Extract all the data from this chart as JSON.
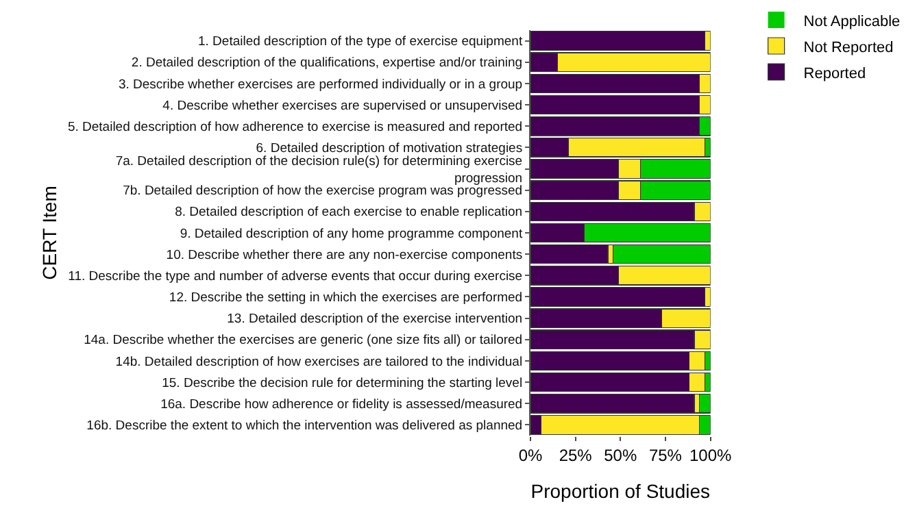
{
  "chart_data": {
    "type": "bar",
    "orientation": "horizontal",
    "stacked": true,
    "xlabel": "Proportion of Studies",
    "ylabel": "CERT Item",
    "categories": [
      "1. Detailed description of the type of exercise equipment",
      "2. Detailed description of the qualifications, expertise and/or training",
      "3. Describe whether exercises are performed individually or in a group",
      "4. Describe whether exercises are supervised or unsupervised",
      "5. Detailed description of how adherence to exercise is measured and reported",
      "6. Detailed description of motivation strategies",
      "7a. Detailed description of the decision rule(s) for determining exercise progression",
      "7b. Detailed description of how the exercise program was progressed",
      "8. Detailed description of each exercise to enable replication",
      "9. Detailed description of any home programme component",
      "10. Describe whether there are any non-exercise components",
      "11. Describe the type and number of adverse events that occur during exercise",
      "12. Describe the setting in which the exercises are performed",
      "13. Detailed description of the exercise intervention",
      "14a. Describe whether the exercises are generic (one size fits all) or tailored",
      "14b. Detailed description of how exercises are tailored to the individual",
      "15. Describe the decision rule for determining the starting level",
      "16a. Describe how adherence or fidelity is assessed/measured",
      "16b. Describe the extent to which the intervention was delivered as planned"
    ],
    "series": [
      {
        "name": "Reported",
        "color": "#440154",
        "values": [
          97,
          15,
          94,
          94,
          94,
          21,
          49,
          49,
          91,
          30,
          43,
          49,
          97,
          73,
          91,
          88,
          88,
          91,
          6
        ]
      },
      {
        "name": "Not Reported",
        "color": "#fde725",
        "values": [
          3,
          85,
          6,
          6,
          0,
          76,
          12,
          12,
          9,
          0,
          3,
          51,
          3,
          27,
          9,
          9,
          9,
          3,
          88
        ]
      },
      {
        "name": "Not Applicable",
        "color": "#00cc00",
        "values": [
          0,
          0,
          0,
          0,
          6,
          3,
          39,
          39,
          0,
          70,
          54,
          0,
          0,
          0,
          0,
          3,
          3,
          6,
          6
        ]
      }
    ],
    "xlim": [
      0,
      100
    ],
    "xticks": [
      {
        "value": 0,
        "label": "0%"
      },
      {
        "value": 25,
        "label": "25%"
      },
      {
        "value": 50,
        "label": "50%"
      },
      {
        "value": 75,
        "label": "75%"
      },
      {
        "value": 100,
        "label": "100%"
      }
    ],
    "legend": "top right"
  }
}
